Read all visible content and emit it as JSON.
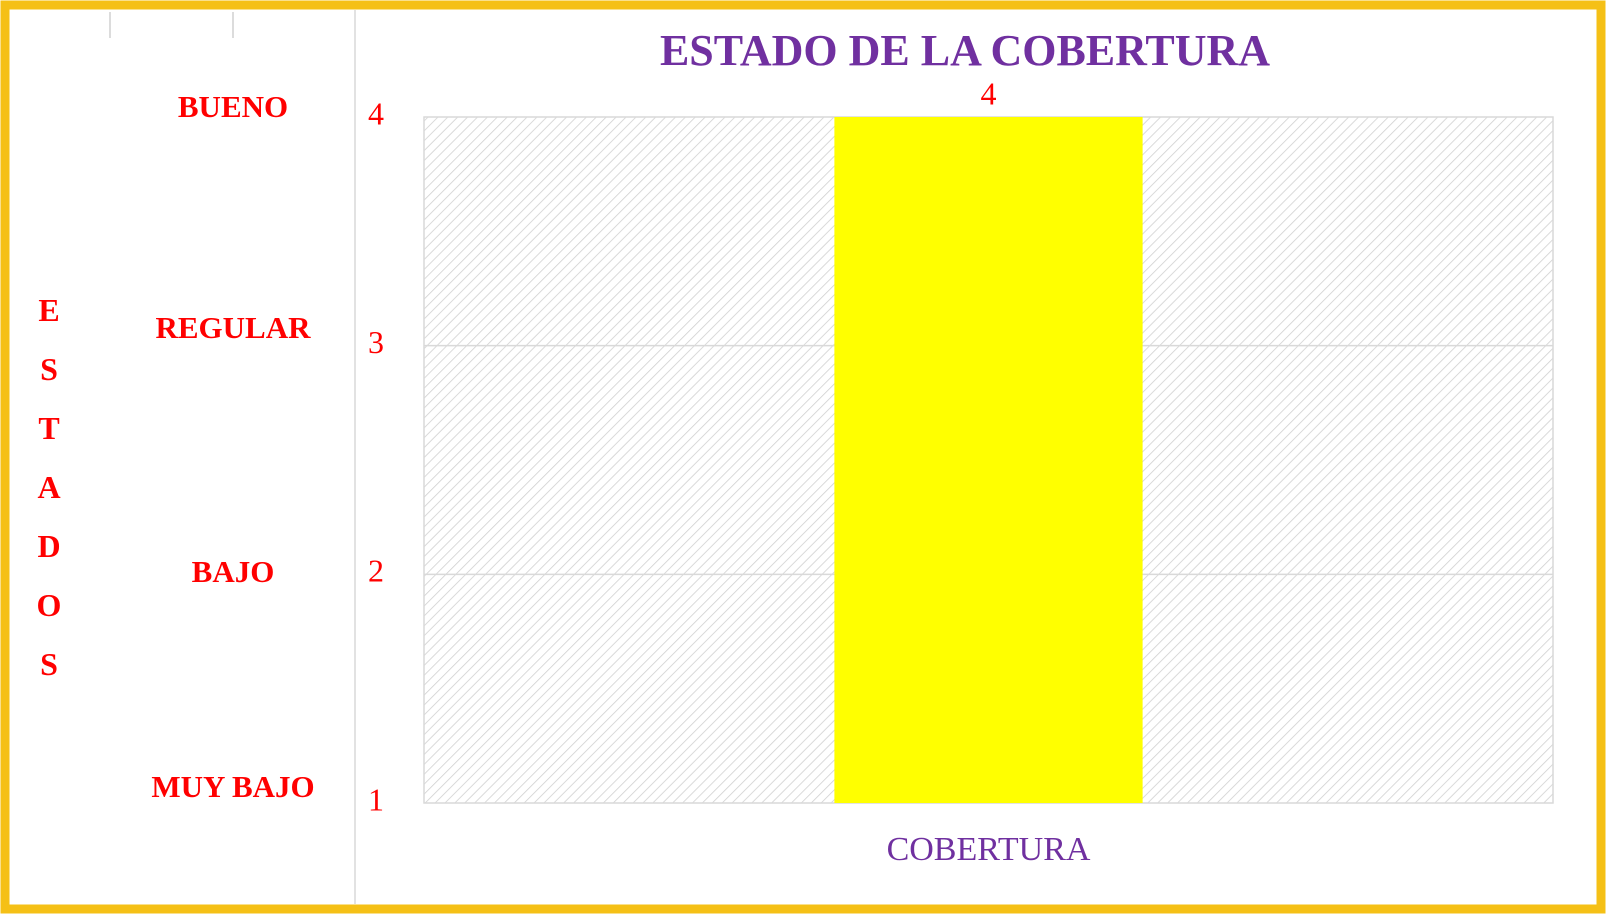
{
  "chart_data": {
    "type": "bar",
    "title": "ESTADO DE LA COBERTURA",
    "categories": [
      "COBERTURA"
    ],
    "values": [
      4
    ],
    "color": "#ffff00",
    "ylim": [
      1,
      4
    ],
    "yticks": [
      1,
      2,
      3,
      4
    ],
    "grid": true,
    "y_axis_title": "ESTADOS",
    "level_labels": [
      "MUY BAJO",
      "BAJO",
      "REGULAR",
      "BUENO"
    ]
  }
}
